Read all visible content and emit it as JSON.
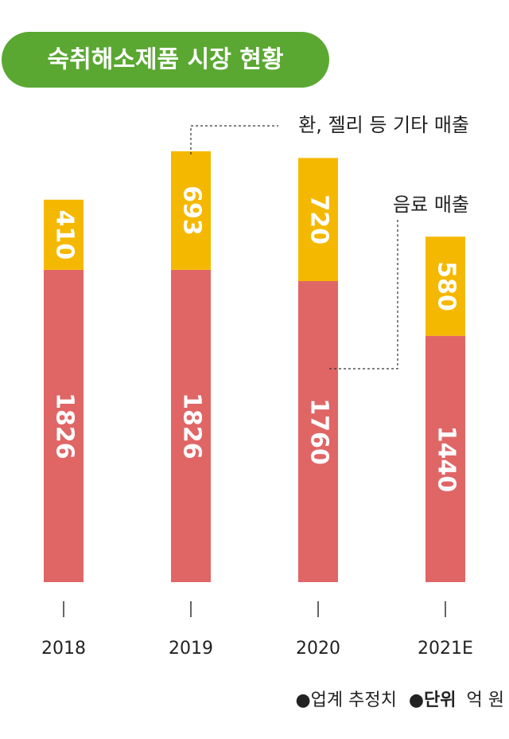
{
  "chart_data": {
    "type": "stacked-bar",
    "title": "숙취해소제품 시장 현황",
    "categories": [
      "2018",
      "2019",
      "2020",
      "2021E"
    ],
    "series": [
      {
        "name": "음료 매출",
        "color": "#e06666",
        "values": [
          1826,
          1826,
          1760,
          1440
        ]
      },
      {
        "name": "환, 젤리 등 기타 매출",
        "color": "#f5b800",
        "values": [
          410,
          693,
          720,
          580
        ]
      }
    ],
    "source": "●업계 추정치",
    "unit_label": "●단위",
    "unit": "억 원"
  }
}
